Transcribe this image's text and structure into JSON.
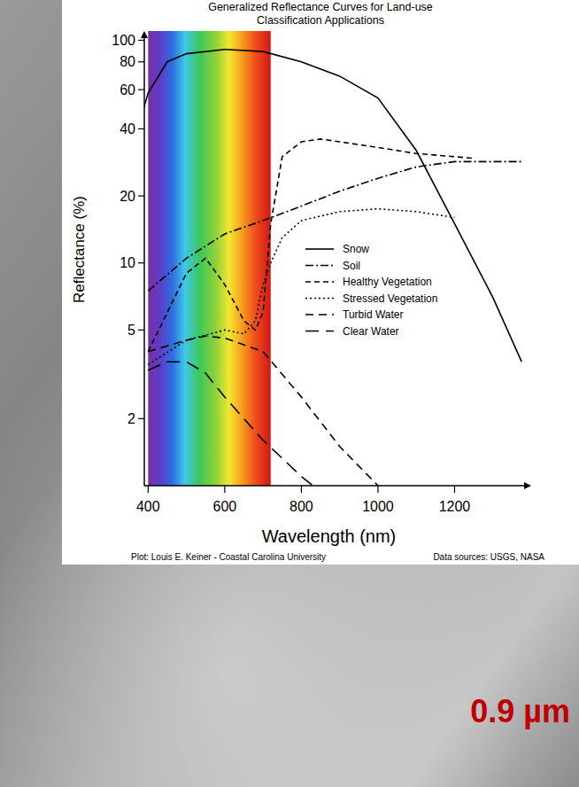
{
  "chart_data": {
    "type": "line",
    "title": "Generalized Reflectance Curves for Land-use Classification Applications",
    "x_label": "Wavelength (nm)",
    "y_label": "Reflectance (%)",
    "credit": "Plot: Louis E. Keiner - Coastal Carolina University",
    "data_source": "Data sources: USGS, NASA",
    "annotation": "0.9 µm",
    "visible_band": [
      400,
      720
    ],
    "log": "y",
    "grid": false,
    "legend": "right",
    "xlim": [
      390,
      1400
    ],
    "ylim": [
      1,
      110
    ],
    "xticks": [
      400,
      600,
      800,
      1000,
      1200
    ],
    "yticks": [
      2,
      5,
      10,
      20,
      40,
      60,
      80,
      100
    ],
    "series": [
      {
        "name": "Snow",
        "color": "#000000",
        "line_style": "solid",
        "x": [
          388,
          400,
          450,
          500,
          600,
          700,
          800,
          900,
          1000,
          1100,
          1200,
          1300,
          1375
        ],
        "values": [
          49,
          58,
          80,
          87,
          91,
          89,
          80,
          69,
          55,
          32,
          15,
          7,
          3.6
        ]
      },
      {
        "name": "Soil",
        "color": "#000000",
        "line_style": "dash-dot",
        "x": [
          400,
          500,
          600,
          700,
          800,
          900,
          1000,
          1100,
          1200,
          1300,
          1380
        ],
        "values": [
          7.5,
          10.5,
          13.5,
          15.5,
          18,
          21,
          24,
          27,
          28.5,
          28.5,
          28.5
        ]
      },
      {
        "name": "Healthy Vegetation",
        "color": "#000000",
        "line_style": "dashed",
        "x": [
          400,
          450,
          500,
          550,
          600,
          650,
          680,
          700,
          720,
          750,
          800,
          850,
          900,
          1000,
          1100,
          1200,
          1250
        ],
        "values": [
          4,
          6,
          9,
          10.5,
          8,
          5.5,
          5,
          6,
          15,
          30,
          35,
          36,
          35,
          33,
          31,
          30,
          29.5
        ]
      },
      {
        "name": "Stressed Vegetation",
        "color": "#000000",
        "line_style": "dotted",
        "x": [
          400,
          500,
          600,
          650,
          680,
          700,
          720,
          750,
          800,
          900,
          1000,
          1100,
          1200
        ],
        "values": [
          3.5,
          4.5,
          5,
          4.8,
          5.5,
          8,
          10,
          13,
          15.5,
          17,
          17.5,
          17,
          16
        ]
      },
      {
        "name": "Turbid Water",
        "color": "#000000",
        "line_style": "medium-dash",
        "x": [
          400,
          500,
          550,
          600,
          700,
          800,
          900,
          1000
        ],
        "values": [
          4,
          4.5,
          4.7,
          4.6,
          4,
          2.5,
          1.5,
          1
        ]
      },
      {
        "name": "Clear Water",
        "color": "#000000",
        "line_style": "long-dash",
        "x": [
          400,
          450,
          500,
          550,
          600,
          700,
          800,
          830
        ],
        "values": [
          3.3,
          3.6,
          3.6,
          3.2,
          2.5,
          1.6,
          1.1,
          1
        ]
      }
    ]
  }
}
